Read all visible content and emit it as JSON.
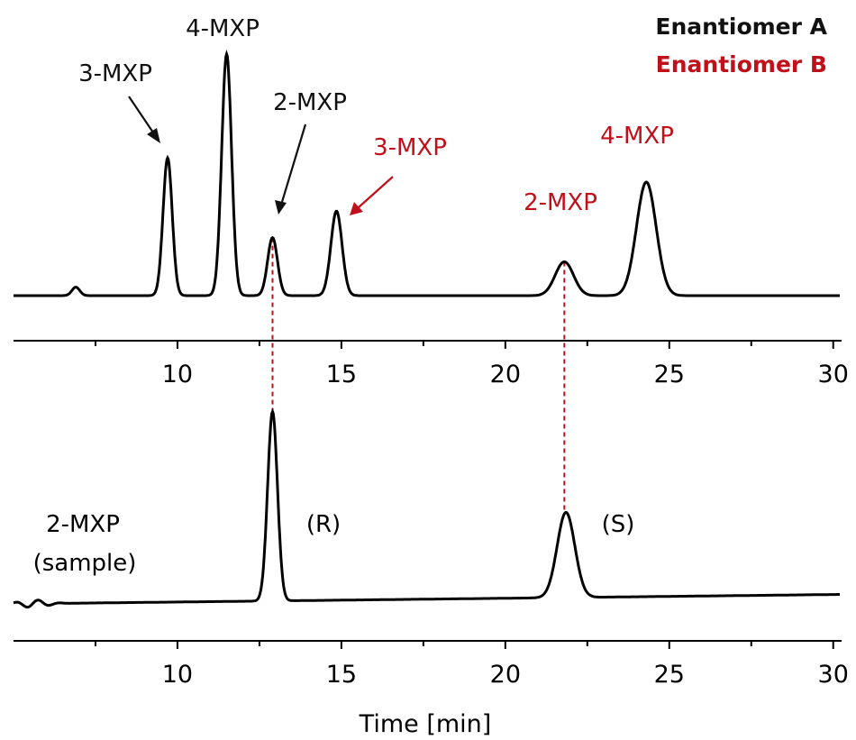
{
  "legend": {
    "enantiomer_a": "Enantiomer A",
    "enantiomer_b": "Enantiomer B",
    "color_a": "#111111",
    "color_b": "#c0101a"
  },
  "colors": {
    "trace": "#000000",
    "dashed_link": "#c0101a"
  },
  "chart_data": [
    {
      "type": "line",
      "panel": "top",
      "xlim": [
        5,
        30.2
      ],
      "xticks": [
        10,
        15,
        20,
        25,
        30
      ],
      "xticks_minor": [
        7.5,
        12.5,
        17.5,
        22.5,
        27.5
      ],
      "baseline": 0.02,
      "noise_bumps": [
        {
          "rt": 6.9,
          "h": 0.035,
          "w": 0.12
        }
      ],
      "peaks": [
        {
          "compound": "3-MXP",
          "enantiomer": "A",
          "rt": 9.7,
          "height": 0.57,
          "width": 0.14
        },
        {
          "compound": "4-MXP",
          "enantiomer": "A",
          "rt": 11.5,
          "height": 1.0,
          "width": 0.15
        },
        {
          "compound": "2-MXP",
          "enantiomer": "A",
          "rt": 12.9,
          "height": 0.24,
          "width": 0.15
        },
        {
          "compound": "3-MXP",
          "enantiomer": "B",
          "rt": 14.85,
          "height": 0.35,
          "width": 0.17
        },
        {
          "compound": "2-MXP",
          "enantiomer": "B",
          "rt": 21.8,
          "height": 0.14,
          "width": 0.28
        },
        {
          "compound": "4-MXP",
          "enantiomer": "B",
          "rt": 24.3,
          "height": 0.47,
          "width": 0.3
        }
      ],
      "annotations": [
        {
          "text": "3-MXP",
          "enantiomer": "A",
          "arrow": true
        },
        {
          "text": "4-MXP",
          "enantiomer": "A",
          "arrow": false
        },
        {
          "text": "2-MXP",
          "enantiomer": "A",
          "arrow": true
        },
        {
          "text": "3-MXP",
          "enantiomer": "B",
          "arrow": true
        },
        {
          "text": "2-MXP",
          "enantiomer": "B",
          "arrow": false
        },
        {
          "text": "4-MXP",
          "enantiomer": "B",
          "arrow": false
        }
      ]
    },
    {
      "type": "line",
      "panel": "bottom",
      "xlim": [
        5,
        30.2
      ],
      "xticks": [
        10,
        15,
        20,
        25,
        30
      ],
      "xticks_minor": [
        7.5,
        12.5,
        17.5,
        22.5,
        27.5
      ],
      "xlabel": "Time [min]",
      "sample_label_line1": "2-MXP",
      "sample_label_line2": "(sample)",
      "baseline_start": 0.0,
      "baseline_end": 0.05,
      "peaks": [
        {
          "label": "(R)",
          "rt": 12.9,
          "height": 1.0,
          "width": 0.15
        },
        {
          "label": "(S)",
          "rt": 21.85,
          "height": 0.45,
          "width": 0.27
        }
      ],
      "links": [
        12.9,
        21.8
      ]
    }
  ]
}
